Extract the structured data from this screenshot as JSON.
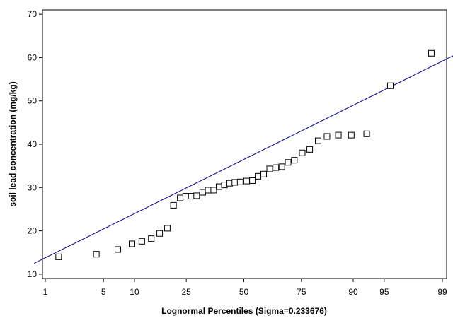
{
  "chart_data": {
    "type": "scatter",
    "xlabel": "Lognormal Percentiles (Sigma=0.233676)",
    "ylabel": "soil lead concentration (mg/kg)",
    "ylim": [
      9,
      71
    ],
    "x_ticks": [
      {
        "label": "1",
        "p": 1
      },
      {
        "label": "5",
        "p": 5
      },
      {
        "label": "10",
        "p": 10
      },
      {
        "label": "25",
        "p": 25
      },
      {
        "label": "50",
        "p": 50
      },
      {
        "label": "75",
        "p": 75
      },
      {
        "label": "90",
        "p": 90
      },
      {
        "label": "95",
        "p": 95
      },
      {
        "label": "99",
        "p": 99
      }
    ],
    "y_ticks": [
      10,
      20,
      30,
      40,
      50,
      60,
      70
    ],
    "grid": false,
    "legend": "none",
    "marker": "open-square",
    "colors": {
      "fit_line": "#00008b",
      "marker": "#000000",
      "frame": "#000000"
    },
    "fit_line": {
      "from": {
        "p": 0.7,
        "y": 12.5
      },
      "to": {
        "p": 99.4,
        "y": 61.0
      }
    },
    "points": [
      {
        "p": 1.5,
        "y": 14.0
      },
      {
        "p": 4.2,
        "y": 14.6
      },
      {
        "p": 7.0,
        "y": 15.7
      },
      {
        "p": 9.5,
        "y": 17.0
      },
      {
        "p": 11.6,
        "y": 17.6
      },
      {
        "p": 13.9,
        "y": 18.2
      },
      {
        "p": 16.2,
        "y": 19.4
      },
      {
        "p": 18.5,
        "y": 20.6
      },
      {
        "p": 20.5,
        "y": 25.9
      },
      {
        "p": 22.8,
        "y": 27.6
      },
      {
        "p": 24.8,
        "y": 28.0
      },
      {
        "p": 26.9,
        "y": 28.0
      },
      {
        "p": 29.0,
        "y": 28.1
      },
      {
        "p": 31.5,
        "y": 28.9
      },
      {
        "p": 33.8,
        "y": 29.4
      },
      {
        "p": 36.2,
        "y": 29.4
      },
      {
        "p": 38.6,
        "y": 30.2
      },
      {
        "p": 41.0,
        "y": 30.6
      },
      {
        "p": 43.4,
        "y": 31.0
      },
      {
        "p": 45.8,
        "y": 31.2
      },
      {
        "p": 48.3,
        "y": 31.3
      },
      {
        "p": 51.3,
        "y": 31.5
      },
      {
        "p": 54.0,
        "y": 31.6
      },
      {
        "p": 56.6,
        "y": 32.6
      },
      {
        "p": 59.2,
        "y": 33.1
      },
      {
        "p": 61.9,
        "y": 34.3
      },
      {
        "p": 64.6,
        "y": 34.6
      },
      {
        "p": 67.2,
        "y": 34.8
      },
      {
        "p": 69.8,
        "y": 35.8
      },
      {
        "p": 72.3,
        "y": 36.3
      },
      {
        "p": 75.3,
        "y": 38.0
      },
      {
        "p": 78.0,
        "y": 38.8
      },
      {
        "p": 80.8,
        "y": 40.8
      },
      {
        "p": 83.5,
        "y": 41.8
      },
      {
        "p": 86.6,
        "y": 42.1
      },
      {
        "p": 89.6,
        "y": 42.1
      },
      {
        "p": 92.5,
        "y": 42.4
      },
      {
        "p": 95.7,
        "y": 53.5
      },
      {
        "p": 98.6,
        "y": 61.0
      }
    ]
  }
}
